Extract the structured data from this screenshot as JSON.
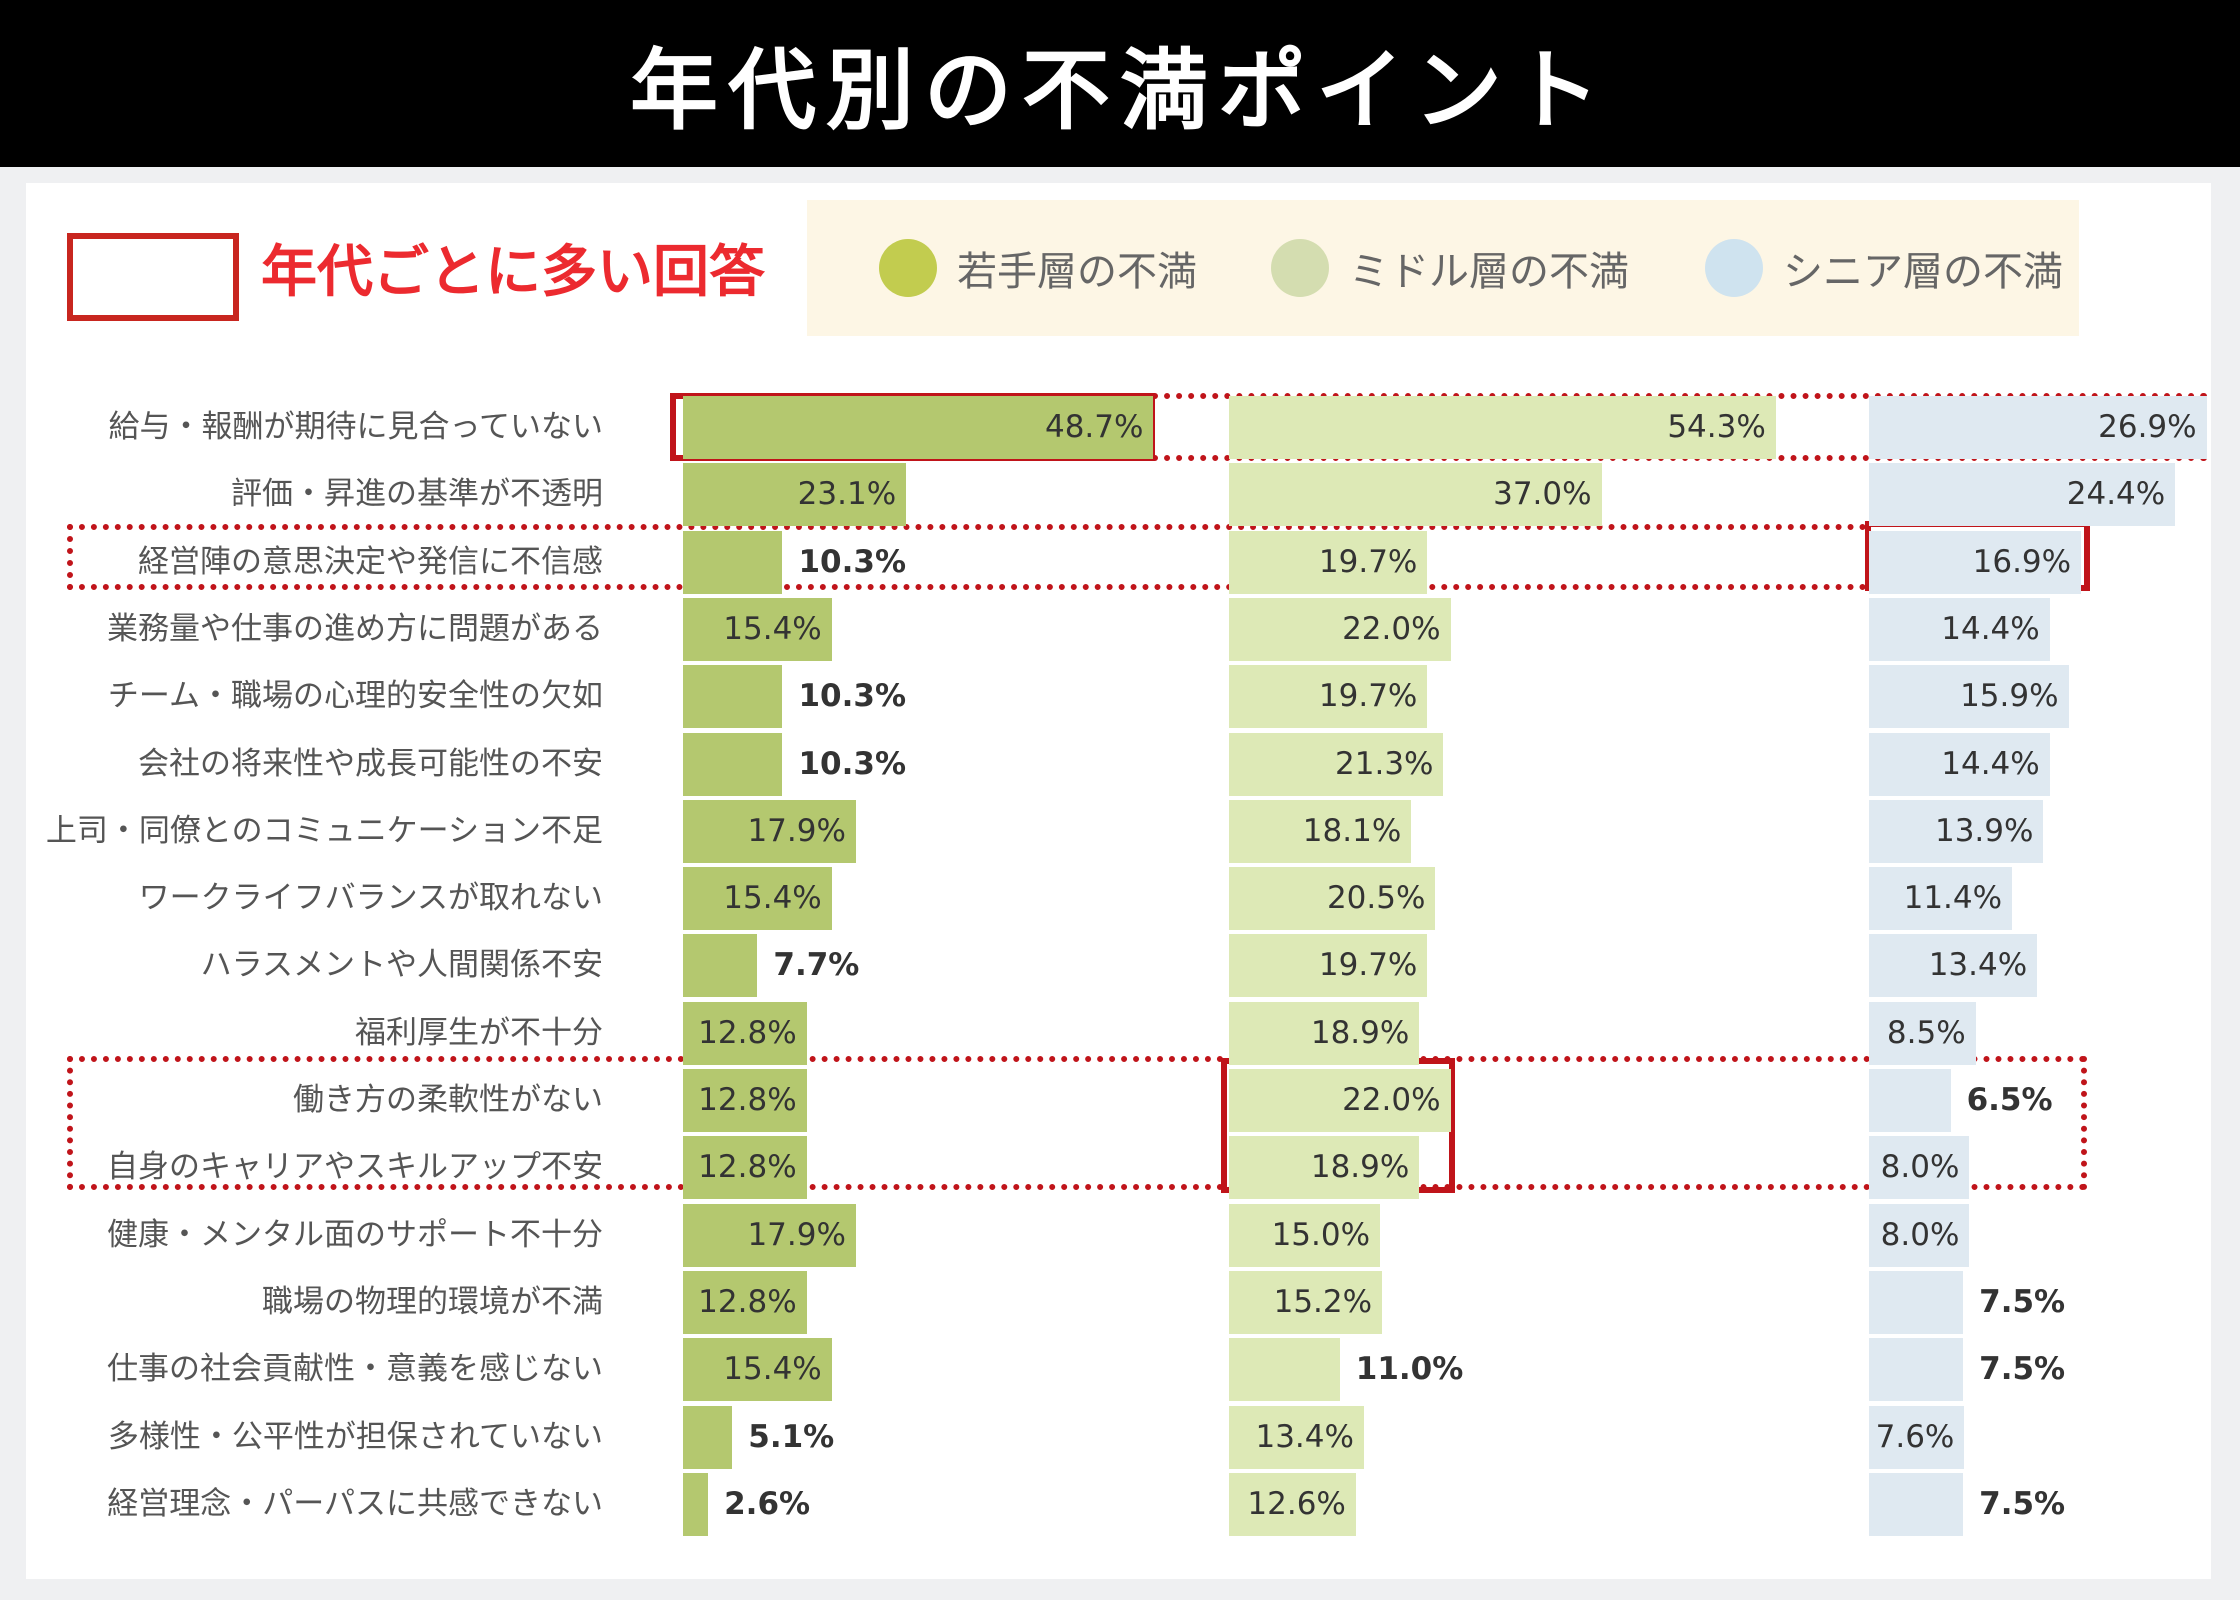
{
  "header": {
    "title": "年代別の不満ポイント"
  },
  "key": {
    "label": "年代ごとに多い回答"
  },
  "colors": {
    "young": "#b4c86f",
    "middle": "#dde9b6",
    "senior": "#dfe9f1",
    "young_dot": "#c2cc4f",
    "middle_dot": "#d4ddb0",
    "senior_dot": "#cfe3ef",
    "highlight": "#c0141a"
  },
  "chart_data": {
    "type": "bar",
    "title": "年代別の不満ポイント",
    "unit": "%",
    "legend": [
      "若手層の不満",
      "ミドル層の不満",
      "シニア層の不満"
    ],
    "legend_placement": "top-right",
    "categories": [
      "給与・報酬が期待に見合っていない",
      "評価・昇進の基準が不透明",
      "経営陣の意思決定や発信に不信感",
      "業務量や仕事の進め方に問題がある",
      "チーム・職場の心理的安全性の欠如",
      "会社の将来性や成長可能性の不安",
      "上司・同僚とのコミュニケーション不足",
      "ワークライフバランスが取れない",
      "ハラスメントや人間関係不安",
      "福利厚生が不十分",
      "働き方の柔軟性がない",
      "自身のキャリアやスキルアップ不安",
      "健康・メンタル面のサポート不十分",
      "職場の物理的環境が不満",
      "仕事の社会貢献性・意義を感じない",
      "多様性・公平性が担保されていない",
      "経営理念・パーパスに共感できない"
    ],
    "series": [
      {
        "name": "若手層の不満",
        "values": [
          48.7,
          23.1,
          10.3,
          15.4,
          10.3,
          10.3,
          17.9,
          15.4,
          7.7,
          12.8,
          12.8,
          12.8,
          17.9,
          12.8,
          15.4,
          5.1,
          2.6
        ],
        "labels": [
          "48.7%",
          "23.1%",
          "10.3%",
          "15.4%",
          "10.3%",
          "10.3%",
          "17.9%",
          "15.4%",
          "7.7%",
          "12.8%",
          "12.8%",
          "12.8%",
          "17.9%",
          "12.8%",
          "15.4%",
          "5.1%",
          "2.6%"
        ]
      },
      {
        "name": "ミドル層の不満",
        "values": [
          54.3,
          37.0,
          19.7,
          22.0,
          19.7,
          21.3,
          18.1,
          20.5,
          19.7,
          18.9,
          22.0,
          18.9,
          15.0,
          15.2,
          11.0,
          13.4,
          12.6
        ],
        "labels": [
          "54.3%",
          "37.0%",
          "19.7%",
          "22.0%",
          "19.7%",
          "21.3%",
          "18.1%",
          "20.5%",
          "19.7%",
          "18.9%",
          "22.0%",
          "18.9%",
          "15.0%",
          "15.2%",
          "11.0%",
          "13.4%",
          "12.6%"
        ]
      },
      {
        "name": "シニア層の不満",
        "values": [
          26.9,
          24.4,
          16.9,
          14.4,
          15.9,
          14.4,
          13.9,
          11.4,
          13.4,
          8.5,
          6.5,
          8.0,
          8.0,
          7.5,
          7.5,
          7.6,
          7.5
        ],
        "labels": [
          "26.9%",
          "24.4%",
          "16.9%",
          "14.4%",
          "15.9%",
          "14.4%",
          "13.9%",
          "11.4%",
          "13.4%",
          "8.5%",
          "6.5%",
          "8.0%",
          "8.0%",
          "7.5%",
          "7.5%",
          "7.6%",
          "7.5%"
        ]
      }
    ],
    "highlights": [
      {
        "series": 0,
        "rows": [
          0
        ]
      },
      {
        "series": 2,
        "rows": [
          2
        ]
      },
      {
        "series": 1,
        "rows": [
          10,
          11
        ]
      }
    ]
  }
}
